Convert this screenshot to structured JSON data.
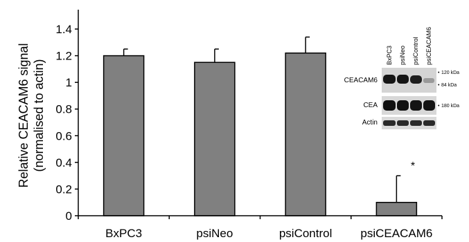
{
  "chart_data": {
    "type": "bar",
    "categories": [
      "BxPC3",
      "psiNeo",
      "psiControl",
      "psiCEACAM6"
    ],
    "values": [
      1.2,
      1.15,
      1.22,
      0.1
    ],
    "error_upper": [
      0.05,
      0.1,
      0.12,
      0.2
    ],
    "ylabel_line1": "Relative CEACAM6 signal",
    "ylabel_line2": "(normalised to actin)",
    "ylim": [
      0,
      1.4
    ],
    "yticks": [
      "0",
      "0.2",
      "0.4",
      "0.6",
      "0.8",
      "1",
      "1.2",
      "1.4"
    ],
    "significance": {
      "category": "psiCEACAM6",
      "marker": "*"
    },
    "bar_color": "#808080",
    "grid": false,
    "inset": {
      "lane_labels": [
        "BxPC3",
        "psiNeo",
        "psiControl",
        "psiCEACAM6"
      ],
      "row_labels": [
        "CEACAM6",
        "CEA",
        "Actin"
      ],
      "marker_labels": [
        "120 kDa",
        "84 kDa",
        "180 kDa"
      ]
    }
  }
}
